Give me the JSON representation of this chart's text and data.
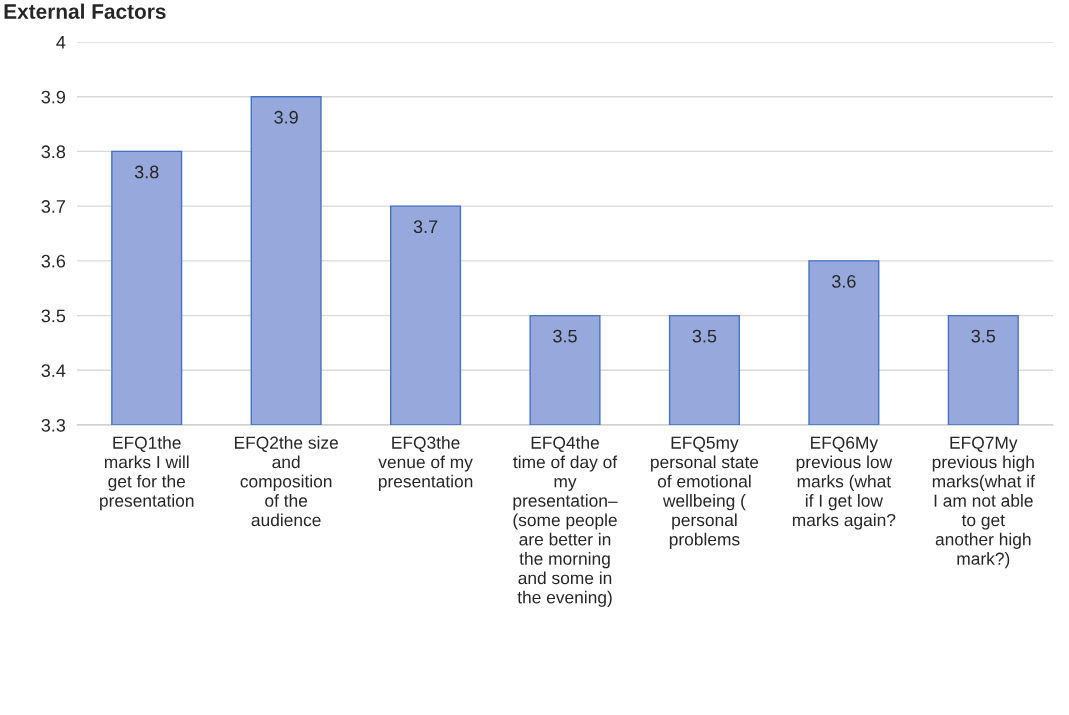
{
  "chart_data": {
    "type": "bar",
    "title": "External Factors",
    "categories": [
      "EFQ1the\nmarks I will\nget for the\npresentation",
      "EFQ2the size\nand\ncomposition\nof the\naudience",
      "EFQ3the\nvenue of my\npresentation",
      "EFQ4the\ntime of day of\nmy\npresentation–\n(some people\nare better in\nthe morning\nand some in\nthe evening)",
      "EFQ5my\npersonal state\nof emotional\nwellbeing (\npersonal\nproblems",
      "EFQ6My\nprevious low\nmarks (what\nif I get low\nmarks again?",
      "EFQ7My\nprevious high\nmarks(what if\nI am not able\nto get\nanother high\nmark?)"
    ],
    "values": [
      3.8,
      3.9,
      3.7,
      3.5,
      3.5,
      3.6,
      3.5
    ],
    "color": "#97a9dc",
    "ylim": [
      3.3,
      4
    ],
    "yticks": [
      3.3,
      3.4,
      3.5,
      3.6,
      3.7,
      3.8,
      3.9,
      4
    ],
    "grid": "y",
    "data_labels": true,
    "legend": false
  }
}
